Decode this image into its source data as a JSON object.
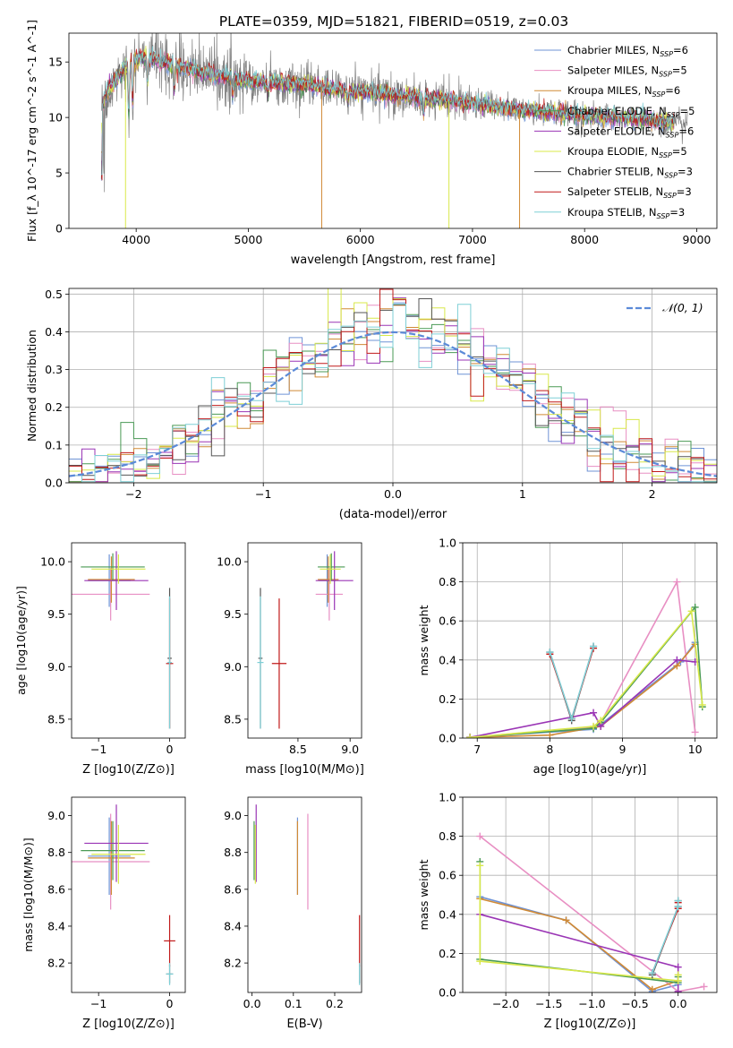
{
  "figure": {
    "title": "PLATE=0359, MJD=51821, FIBERID=0519, z=0.03"
  },
  "colors": {
    "Chabrier MILES": "#6f93d6",
    "Salpeter MILES": "#e88fc3",
    "Kroupa MILES": "#d08a36",
    "Chabrier ELODIE": "#4a9a55",
    "Salpeter ELODIE": "#9a35b5",
    "Kroupa ELODIE": "#d8e84a",
    "Chabrier STELIB": "#555555",
    "Salpeter STELIB": "#c11a1a",
    "Kroupa STELIB": "#7ecfd6",
    "gaussian": "#5b8ad8",
    "grid": "#b0b0b0"
  },
  "chart_data": [
    {
      "id": "spectrum",
      "type": "line",
      "title": "PLATE=0359, MJD=51821, FIBERID=0519, z=0.03",
      "xlabel": "wavelength [Angstrom, rest frame]",
      "ylabel": "Flux [f_λ 10^-17 erg cm^-2 s^-1 A^-1]",
      "xlim": [
        3400,
        9180
      ],
      "ylim": [
        0,
        17.6
      ],
      "xticks": [
        4000,
        5000,
        6000,
        7000,
        8000,
        9000
      ],
      "yticks": [
        0,
        5,
        10,
        15
      ],
      "grid": false,
      "legend_position": "top-right",
      "legend": [
        {
          "name": "Chabrier MILES",
          "nssp": "6"
        },
        {
          "name": "Salpeter MILES",
          "nssp": "5"
        },
        {
          "name": "Kroupa MILES",
          "nssp": "6"
        },
        {
          "name": "Chabrier ELODIE",
          "nssp": "5"
        },
        {
          "name": "Salpeter ELODIE",
          "nssp": "6"
        },
        {
          "name": "Kroupa ELODIE",
          "nssp": "5"
        },
        {
          "name": "Chabrier STELIB",
          "nssp": "3"
        },
        {
          "name": "Salpeter STELIB",
          "nssp": "3"
        },
        {
          "name": "Kroupa STELIB",
          "nssp": "3"
        }
      ],
      "continuum_anchors": [
        [
          3690,
          11.0
        ],
        [
          3750,
          12.5
        ],
        [
          3900,
          14.5
        ],
        [
          4050,
          15.5
        ],
        [
          4300,
          14.8
        ],
        [
          4600,
          14.0
        ],
        [
          5000,
          13.3
        ],
        [
          5500,
          12.9
        ],
        [
          6000,
          12.3
        ],
        [
          6500,
          11.8
        ],
        [
          7000,
          11.2
        ],
        [
          7500,
          10.6
        ],
        [
          8000,
          10.2
        ],
        [
          8500,
          9.8
        ],
        [
          8920,
          9.5
        ]
      ],
      "data_range": [
        3690,
        8920
      ],
      "model_range": [
        3690,
        8800
      ]
    },
    {
      "id": "residuals",
      "type": "histogram",
      "xlabel": "(data-model)/error",
      "ylabel": "Normed distribution",
      "xlim": [
        -2.5,
        2.5
      ],
      "ylim": [
        0,
        0.515
      ],
      "xticks": [
        -2,
        -1,
        0,
        1,
        2
      ],
      "yticks": [
        0.0,
        0.1,
        0.2,
        0.3,
        0.4,
        0.5
      ],
      "grid": true,
      "legend_position": "top-right",
      "legend": [
        {
          "name": "𝒩(0, 1)"
        }
      ],
      "bin_width": 0.1,
      "bin_start": -2.5
    },
    {
      "id": "age-vs-Z",
      "type": "errorbar",
      "xlabel": "Z [log10(Z/Z⊙)]",
      "ylabel": "age [log10(age/yr)]",
      "xlim": [
        -1.38,
        0.22
      ],
      "ylim": [
        8.32,
        10.18
      ],
      "xticks": [
        -1,
        0
      ],
      "yticks": [
        8.5,
        9.0,
        9.5,
        10.0
      ],
      "grid": false,
      "points": [
        {
          "model": "Chabrier MILES",
          "x": -0.85,
          "xerr": 0.3,
          "y": 9.82,
          "yerr": 0.25
        },
        {
          "model": "Salpeter MILES",
          "x": -0.83,
          "xerr": 0.55,
          "y": 9.69,
          "yerr": 0.25
        },
        {
          "model": "Kroupa MILES",
          "x": -0.82,
          "xerr": 0.33,
          "y": 9.83,
          "yerr": 0.22
        },
        {
          "model": "Chabrier ELODIE",
          "x": -0.8,
          "xerr": 0.45,
          "y": 9.95,
          "yerr": 0.13
        },
        {
          "model": "Salpeter ELODIE",
          "x": -0.75,
          "xerr": 0.45,
          "y": 9.82,
          "yerr": 0.28
        },
        {
          "model": "Kroupa ELODIE",
          "x": -0.72,
          "xerr": 0.38,
          "y": 9.93,
          "yerr": 0.14
        },
        {
          "model": "Chabrier STELIB",
          "x": 0.0,
          "xerr": 0.03,
          "y": 9.08,
          "yerr": 0.67
        },
        {
          "model": "Salpeter STELIB",
          "x": 0.0,
          "xerr": 0.05,
          "y": 9.03,
          "yerr": 0.62
        },
        {
          "model": "Kroupa STELIB",
          "x": 0.0,
          "xerr": 0.03,
          "y": 9.04,
          "yerr": 0.63
        }
      ]
    },
    {
      "id": "age-vs-mass",
      "type": "errorbar",
      "xlabel": "mass [log10(M/M⊙)]",
      "ylabel": "",
      "xlim": [
        8.02,
        9.11
      ],
      "ylim": [
        8.32,
        10.18
      ],
      "xticks": [
        8.5,
        9.0
      ],
      "yticks": [
        8.5,
        9.0,
        9.5,
        10.0
      ],
      "grid": false,
      "points": [
        {
          "model": "Chabrier MILES",
          "x": 8.78,
          "xerr": 0.08,
          "y": 9.82,
          "yerr": 0.25
        },
        {
          "model": "Salpeter MILES",
          "x": 8.8,
          "xerr": 0.13,
          "y": 9.69,
          "yerr": 0.25
        },
        {
          "model": "Kroupa MILES",
          "x": 8.79,
          "xerr": 0.1,
          "y": 9.83,
          "yerr": 0.22
        },
        {
          "model": "Chabrier ELODIE",
          "x": 8.82,
          "xerr": 0.13,
          "y": 9.95,
          "yerr": 0.13
        },
        {
          "model": "Salpeter ELODIE",
          "x": 8.85,
          "xerr": 0.18,
          "y": 9.82,
          "yerr": 0.28
        },
        {
          "model": "Kroupa ELODIE",
          "x": 8.81,
          "xerr": 0.1,
          "y": 9.93,
          "yerr": 0.14
        },
        {
          "model": "Chabrier STELIB",
          "x": 8.14,
          "xerr": 0.02,
          "y": 9.08,
          "yerr": 0.67
        },
        {
          "model": "Salpeter STELIB",
          "x": 8.32,
          "xerr": 0.07,
          "y": 9.03,
          "yerr": 0.62
        },
        {
          "model": "Kroupa STELIB",
          "x": 8.14,
          "xerr": 0.03,
          "y": 9.04,
          "yerr": 0.63
        }
      ]
    },
    {
      "id": "weight-vs-age",
      "type": "line",
      "xlabel": "age [log10(age/yr)]",
      "ylabel": "mass weight",
      "xlim": [
        6.8,
        10.3
      ],
      "ylim": [
        0,
        1.0
      ],
      "xticks": [
        7,
        8,
        9,
        10
      ],
      "yticks": [
        0.0,
        0.2,
        0.4,
        0.6,
        0.8,
        1.0
      ],
      "grid": true,
      "series": [
        {
          "model": "Chabrier MILES",
          "x": [
            6.9,
            8.6,
            8.7,
            9.8,
            10.0
          ],
          "y": [
            0.005,
            0.045,
            0.07,
            0.39,
            0.49
          ]
        },
        {
          "model": "Salpeter MILES",
          "x": [
            6.9,
            8.6,
            8.7,
            9.75,
            10.0
          ],
          "y": [
            0.005,
            0.055,
            0.08,
            0.8,
            0.03
          ]
        },
        {
          "model": "Kroupa MILES",
          "x": [
            6.9,
            8.0,
            8.7,
            9.75,
            10.0
          ],
          "y": [
            0.003,
            0.015,
            0.06,
            0.37,
            0.48
          ]
        },
        {
          "model": "Chabrier ELODIE",
          "x": [
            6.9,
            8.6,
            8.7,
            10.0,
            10.1
          ],
          "y": [
            0.003,
            0.05,
            0.08,
            0.67,
            0.16
          ]
        },
        {
          "model": "Salpeter ELODIE",
          "x": [
            6.9,
            8.6,
            8.7,
            9.75,
            10.0
          ],
          "y": [
            0.003,
            0.13,
            0.06,
            0.4,
            0.39
          ]
        },
        {
          "model": "Kroupa ELODIE",
          "x": [
            6.9,
            8.6,
            8.7,
            9.95,
            10.1
          ],
          "y": [
            0.003,
            0.06,
            0.09,
            0.65,
            0.17
          ]
        },
        {
          "model": "Chabrier STELIB",
          "x": [
            8.0,
            8.3,
            8.6
          ],
          "y": [
            0.44,
            0.09,
            0.47
          ]
        },
        {
          "model": "Salpeter STELIB",
          "x": [
            8.0,
            8.3,
            8.6
          ],
          "y": [
            0.43,
            0.1,
            0.46
          ]
        },
        {
          "model": "Kroupa STELIB",
          "x": [
            8.0,
            8.3,
            8.6
          ],
          "y": [
            0.44,
            0.1,
            0.47
          ]
        }
      ]
    },
    {
      "id": "mass-vs-Z",
      "type": "errorbar",
      "xlabel": "Z [log10(Z/Z⊙)]",
      "ylabel": "mass [log10(M/M⊙)]",
      "xlim": [
        -1.38,
        0.22
      ],
      "ylim": [
        8.04,
        9.1
      ],
      "xticks": [
        -1,
        0
      ],
      "yticks": [
        8.2,
        8.4,
        8.6,
        8.8,
        9.0
      ],
      "grid": false,
      "points": [
        {
          "model": "Chabrier MILES",
          "x": -0.85,
          "xerr": 0.3,
          "y": 8.78,
          "yerr": 0.21
        },
        {
          "model": "Salpeter MILES",
          "x": -0.83,
          "xerr": 0.55,
          "y": 8.75,
          "yerr": 0.26
        },
        {
          "model": "Kroupa MILES",
          "x": -0.82,
          "xerr": 0.33,
          "y": 8.77,
          "yerr": 0.2
        },
        {
          "model": "Chabrier ELODIE",
          "x": -0.8,
          "xerr": 0.45,
          "y": 8.81,
          "yerr": 0.16
        },
        {
          "model": "Salpeter ELODIE",
          "x": -0.75,
          "xerr": 0.45,
          "y": 8.85,
          "yerr": 0.21
        },
        {
          "model": "Kroupa ELODIE",
          "x": -0.72,
          "xerr": 0.38,
          "y": 8.79,
          "yerr": 0.16
        },
        {
          "model": "Chabrier STELIB",
          "x": 0.0,
          "xerr": 0.05,
          "y": 8.14,
          "yerr": 0.05
        },
        {
          "model": "Salpeter STELIB",
          "x": 0.0,
          "xerr": 0.08,
          "y": 8.32,
          "yerr": 0.14
        },
        {
          "model": "Kroupa STELIB",
          "x": 0.0,
          "xerr": 0.05,
          "y": 8.14,
          "yerr": 0.06
        }
      ]
    },
    {
      "id": "mass-vs-EBV",
      "type": "errorbar",
      "xlabel": "E(B-V)",
      "ylabel": "",
      "xlim": [
        -0.01,
        0.265
      ],
      "ylim": [
        8.04,
        9.1
      ],
      "xticks": [
        0.0,
        0.1,
        0.2
      ],
      "yticks": [
        8.2,
        8.4,
        8.6,
        8.8,
        9.0
      ],
      "grid": false,
      "points": [
        {
          "model": "Chabrier MILES",
          "x": 0.11,
          "xerr": 0,
          "y": 8.78,
          "yerr": 0.21
        },
        {
          "model": "Salpeter MILES",
          "x": 0.135,
          "xerr": 0,
          "y": 8.75,
          "yerr": 0.26
        },
        {
          "model": "Kroupa MILES",
          "x": 0.11,
          "xerr": 0,
          "y": 8.77,
          "yerr": 0.2
        },
        {
          "model": "Chabrier ELODIE",
          "x": 0.005,
          "xerr": 0,
          "y": 8.81,
          "yerr": 0.16
        },
        {
          "model": "Salpeter ELODIE",
          "x": 0.01,
          "xerr": 0,
          "y": 8.85,
          "yerr": 0.21
        },
        {
          "model": "Kroupa ELODIE",
          "x": 0.008,
          "xerr": 0,
          "y": 8.79,
          "yerr": 0.16
        },
        {
          "model": "Chabrier STELIB",
          "x": 0.26,
          "xerr": 0,
          "y": 8.14,
          "yerr": 0.05
        },
        {
          "model": "Salpeter STELIB",
          "x": 0.26,
          "xerr": 0,
          "y": 8.32,
          "yerr": 0.14
        },
        {
          "model": "Kroupa STELIB",
          "x": 0.26,
          "xerr": 0,
          "y": 8.14,
          "yerr": 0.06
        }
      ]
    },
    {
      "id": "weight-vs-Z",
      "type": "line",
      "xlabel": "Z [log10(Z/Z⊙)]",
      "ylabel": "mass weight",
      "xlim": [
        -2.5,
        0.45
      ],
      "ylim": [
        0,
        1.0
      ],
      "xticks": [
        -2.0,
        -1.5,
        -1.0,
        -0.5,
        0.0
      ],
      "yticks": [
        0.0,
        0.2,
        0.4,
        0.6,
        0.8,
        1.0
      ],
      "grid": true,
      "series": [
        {
          "model": "Chabrier MILES",
          "x": [
            -2.3,
            -1.3,
            -0.3,
            0.0
          ],
          "y": [
            0.49,
            0.37,
            0.005,
            0.04
          ]
        },
        {
          "model": "Salpeter MILES",
          "x": [
            -2.3,
            0.0,
            0.3
          ],
          "y": [
            0.8,
            0.005,
            0.03
          ]
        },
        {
          "model": "Kroupa MILES",
          "x": [
            -2.3,
            -1.3,
            -0.3,
            0.0
          ],
          "y": [
            0.48,
            0.37,
            0.015,
            0.06
          ]
        },
        {
          "model": "Chabrier ELODIE",
          "x": [
            -2.3,
            -2.3,
            0.0,
            0.0
          ],
          "y": [
            0.67,
            0.17,
            0.05,
            0.08
          ]
        },
        {
          "model": "Salpeter ELODIE",
          "x": [
            -2.3,
            0.0,
            0.0
          ],
          "y": [
            0.4,
            0.13,
            0.005
          ]
        },
        {
          "model": "Kroupa ELODIE",
          "x": [
            -2.3,
            -2.3,
            0.0,
            0.0
          ],
          "y": [
            0.65,
            0.16,
            0.06,
            0.09
          ]
        },
        {
          "model": "Chabrier STELIB",
          "x": [
            -0.3,
            0.0,
            0.0
          ],
          "y": [
            0.09,
            0.44,
            0.47
          ]
        },
        {
          "model": "Salpeter STELIB",
          "x": [
            -0.3,
            0.0,
            0.0
          ],
          "y": [
            0.1,
            0.43,
            0.46
          ]
        },
        {
          "model": "Kroupa STELIB",
          "x": [
            -0.3,
            0.0,
            0.0
          ],
          "y": [
            0.1,
            0.44,
            0.47
          ]
        }
      ]
    }
  ]
}
